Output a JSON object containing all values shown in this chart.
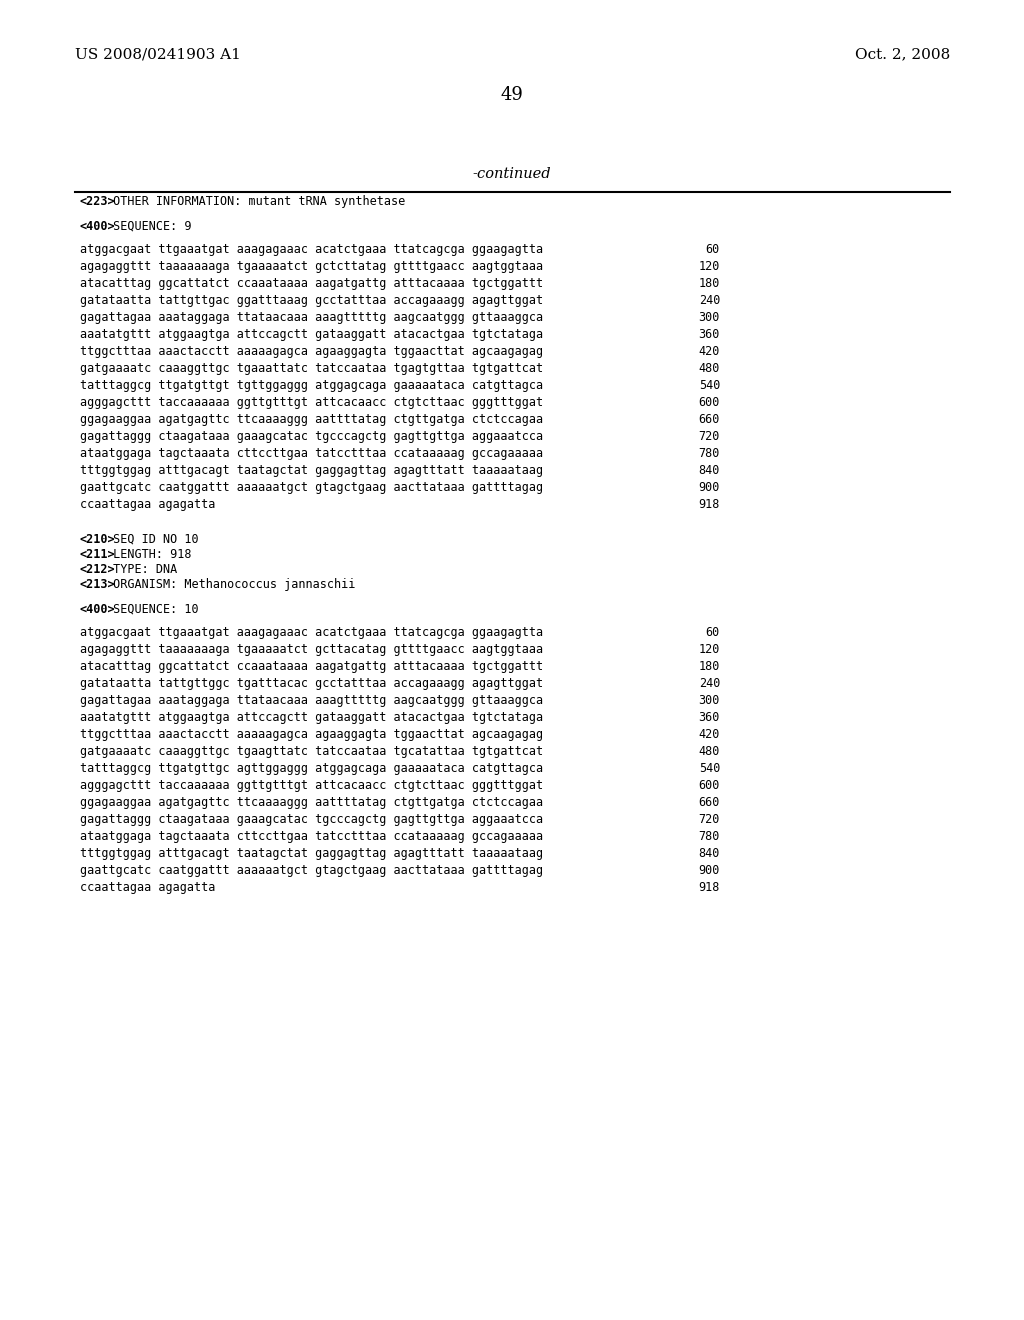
{
  "patent_left": "US 2008/0241903 A1",
  "patent_right": "Oct. 2, 2008",
  "page_number": "49",
  "continued_label": "-continued",
  "background_color": "#ffffff",
  "text_color": "#000000",
  "sections": [
    {
      "type": "meta",
      "lines": [
        "<223> OTHER INFORMATION: mutant tRNA synthetase",
        "",
        "<400> SEQUENCE: 9"
      ]
    },
    {
      "type": "sequence",
      "lines": [
        [
          "atggacgaat ttgaaatgat aaagagaaac acatctgaaa ttatcagcga ggaagagtta",
          "60"
        ],
        [
          "agagaggttt taaaaaaaga tgaaaaatct gctcttatag gttttgaacc aagtggtaaa",
          "120"
        ],
        [
          "atacatttag ggcattatct ccaaataaaa aagatgattg atttacaaaa tgctggattt",
          "180"
        ],
        [
          "gatataatta tattgttgac ggatttaaag gcctatttaa accagaaagg agagttggat",
          "240"
        ],
        [
          "gagattagaa aaataggaga ttataacaaa aaagtttttg aagcaatggg gttaaaggca",
          "300"
        ],
        [
          "aaatatgttt atggaagtga attccagctt gataaggatt atacactgaa tgtctataga",
          "360"
        ],
        [
          "ttggctttaa aaactacctt aaaaagagca agaaggagta tggaacttat agcaagagag",
          "420"
        ],
        [
          "gatgaaaatc caaaggttgc tgaaattatc tatccaataa tgagtgttaa tgtgattcat",
          "480"
        ],
        [
          "tatttaggcg ttgatgttgt tgttggaggg atggagcaga gaaaaataca catgttagca",
          "540"
        ],
        [
          "agggagcttt taccaaaaaa ggttgtttgt attcacaacc ctgtcttaac gggtttggat",
          "600"
        ],
        [
          "ggagaaggaa agatgagttc ttcaaaaggg aattttatag ctgttgatga ctctccagaa",
          "660"
        ],
        [
          "gagattaggg ctaagataaa gaaagcatac tgcccagctg gagttgttga aggaaatcca",
          "720"
        ],
        [
          "ataatggaga tagctaaata cttccttgaa tatcctttaa ccataaaaag gccagaaaaa",
          "780"
        ],
        [
          "tttggtggag atttgacagt taatagctat gaggagttag agagtttatt taaaaataag",
          "840"
        ],
        [
          "gaattgcatc caatggattt aaaaaatgct gtagctgaag aacttataaa gattttagag",
          "900"
        ],
        [
          "ccaattagaa agagatta",
          "918"
        ]
      ]
    },
    {
      "type": "meta",
      "lines": [
        "",
        "<210> SEQ ID NO 10",
        "<211> LENGTH: 918",
        "<212> TYPE: DNA",
        "<213> ORGANISM: Methanococcus jannaschii",
        "",
        "<400> SEQUENCE: 10"
      ]
    },
    {
      "type": "sequence",
      "lines": [
        [
          "atggacgaat ttgaaatgat aaagagaaac acatctgaaa ttatcagcga ggaagagtta",
          "60"
        ],
        [
          "agagaggttt taaaaaaaga tgaaaaatct gcttacatag gttttgaacc aagtggtaaa",
          "120"
        ],
        [
          "atacatttag ggcattatct ccaaataaaa aagatgattg atttacaaaa tgctggattt",
          "180"
        ],
        [
          "gatataatta tattgttggc tgatttacac gcctatttaa accagaaagg agagttggat",
          "240"
        ],
        [
          "gagattagaa aaataggaga ttataacaaa aaagtttttg aagcaatggg gttaaaggca",
          "300"
        ],
        [
          "aaatatgttt atggaagtga attccagctt gataaggatt atacactgaa tgtctataga",
          "360"
        ],
        [
          "ttggctttaa aaactacctt aaaaagagca agaaggagta tggaacttat agcaagagag",
          "420"
        ],
        [
          "gatgaaaatc caaaggttgc tgaagttatc tatccaataa tgcatattaa tgtgattcat",
          "480"
        ],
        [
          "tatttaggcg ttgatgttgc agttggaggg atggagcaga gaaaaataca catgttagca",
          "540"
        ],
        [
          "agggagcttt taccaaaaaa ggttgtttgt attcacaacc ctgtcttaac gggtttggat",
          "600"
        ],
        [
          "ggagaaggaa agatgagttc ttcaaaaggg aattttatag ctgttgatga ctctccagaa",
          "660"
        ],
        [
          "gagattaggg ctaagataaa gaaagcatac tgcccagctg gagttgttga aggaaatcca",
          "720"
        ],
        [
          "ataatggaga tagctaaata cttccttgaa tatcctttaa ccataaaaag gccagaaaaa",
          "780"
        ],
        [
          "tttggtggag atttgacagt taatagctat gaggagttag agagtttatt taaaaataag",
          "840"
        ],
        [
          "gaattgcatc caatggattt aaaaaatgct gtagctgaag aacttataaa gattttagag",
          "900"
        ],
        [
          "ccaattagaa agagatta",
          "918"
        ]
      ]
    }
  ]
}
